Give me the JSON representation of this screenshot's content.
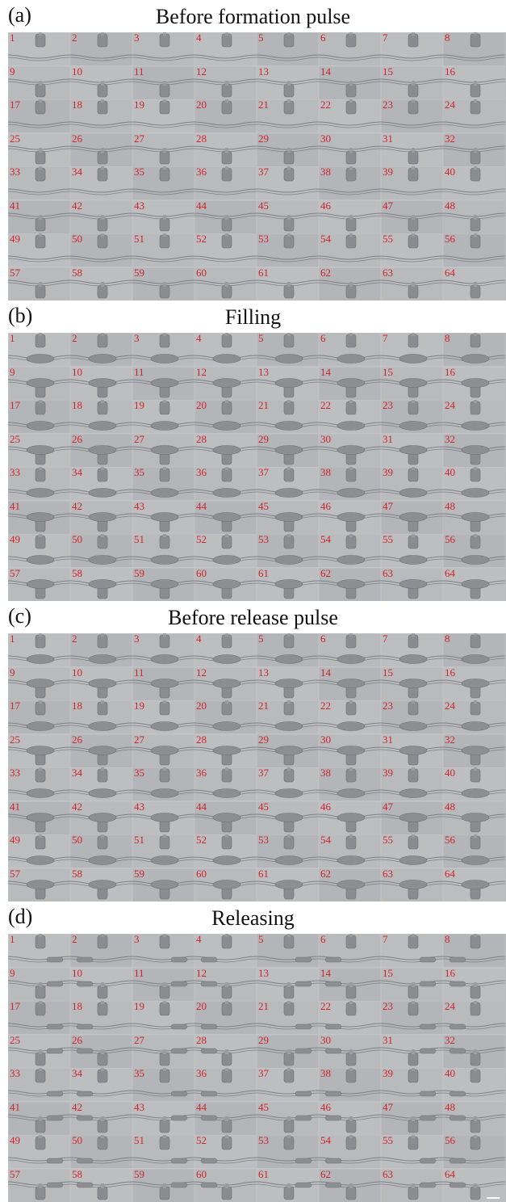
{
  "panels": [
    {
      "label": "(a)",
      "title": "Before formation pulse",
      "state": "empty"
    },
    {
      "label": "(b)",
      "title": "Filling",
      "state": "filled"
    },
    {
      "label": "(c)",
      "title": "Before release pulse",
      "state": "filled"
    },
    {
      "label": "(d)",
      "title": "Releasing",
      "state": "releasing"
    }
  ],
  "numbers": [
    "1",
    "2",
    "3",
    "4",
    "5",
    "6",
    "7",
    "8",
    "9",
    "10",
    "11",
    "12",
    "13",
    "14",
    "15",
    "16",
    "17",
    "18",
    "19",
    "20",
    "21",
    "22",
    "23",
    "24",
    "25",
    "26",
    "27",
    "28",
    "29",
    "30",
    "31",
    "32",
    "33",
    "34",
    "35",
    "36",
    "37",
    "38",
    "39",
    "40",
    "41",
    "42",
    "43",
    "44",
    "45",
    "46",
    "47",
    "48",
    "49",
    "50",
    "51",
    "52",
    "53",
    "54",
    "55",
    "56",
    "57",
    "58",
    "59",
    "60",
    "61",
    "62",
    "63",
    "64"
  ],
  "colors": {
    "background": "#b7b9bb",
    "channel": "#7f8285",
    "droplet": "#8c8f92",
    "number": "#d2232a"
  }
}
